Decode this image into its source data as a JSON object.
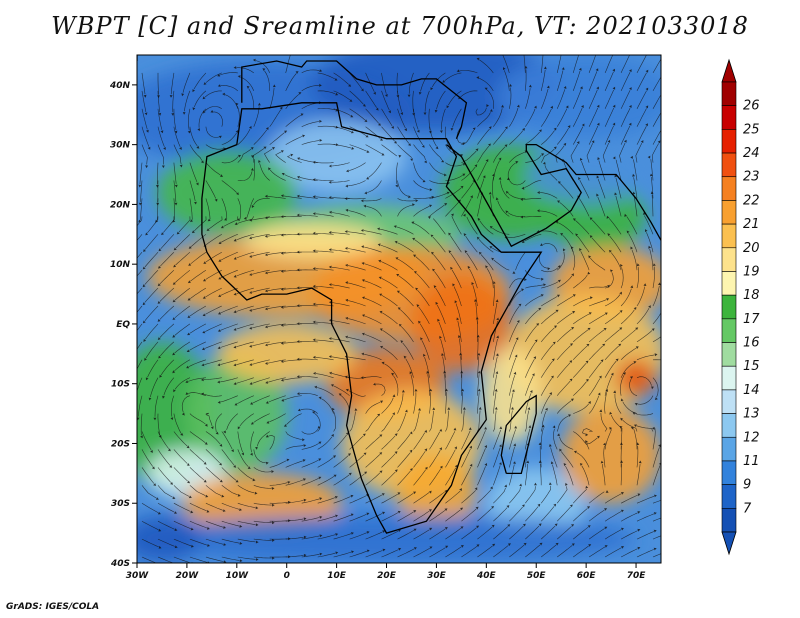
{
  "title": "WBPT [C] and Sreamline at 700hPa, VT: 2021033018",
  "footer": "GrADS: IGES/COLA",
  "map": {
    "lon_range": [
      -30,
      75
    ],
    "lat_range": [
      -40,
      45
    ],
    "lon_ticks": [
      {
        "value": -30,
        "label": "30W"
      },
      {
        "value": -20,
        "label": "20W"
      },
      {
        "value": -10,
        "label": "10W"
      },
      {
        "value": 0,
        "label": "0"
      },
      {
        "value": 10,
        "label": "10E"
      },
      {
        "value": 20,
        "label": "20E"
      },
      {
        "value": 30,
        "label": "30E"
      },
      {
        "value": 40,
        "label": "40E"
      },
      {
        "value": 50,
        "label": "50E"
      },
      {
        "value": 60,
        "label": "60E"
      },
      {
        "value": 70,
        "label": "70E"
      }
    ],
    "lat_ticks": [
      {
        "value": 40,
        "label": "40N"
      },
      {
        "value": 30,
        "label": "30N"
      },
      {
        "value": 20,
        "label": "20N"
      },
      {
        "value": 10,
        "label": "10N"
      },
      {
        "value": 0,
        "label": "EQ"
      },
      {
        "value": -10,
        "label": "10S"
      },
      {
        "value": -20,
        "label": "20S"
      },
      {
        "value": -30,
        "label": "30S"
      },
      {
        "value": -40,
        "label": "40S"
      }
    ]
  },
  "colorbar": {
    "labels": [
      "26",
      "25",
      "24",
      "23",
      "22",
      "21",
      "20",
      "19",
      "18",
      "17",
      "16",
      "15",
      "14",
      "13",
      "12",
      "11",
      "9",
      "7"
    ],
    "colors": [
      "#a00000",
      "#c80000",
      "#e62000",
      "#f05010",
      "#f58020",
      "#f8a030",
      "#fbc050",
      "#fde28c",
      "#fdf5b0",
      "#3cb43c",
      "#64c864",
      "#a0dca0",
      "#dcf5f0",
      "#bee0f5",
      "#8cc8f0",
      "#5aa5e6",
      "#3282dc",
      "#1e64c8",
      "#1450b4"
    ],
    "top_arrow_color": "#a00000",
    "bottom_arrow_color": "#1450b4"
  }
}
